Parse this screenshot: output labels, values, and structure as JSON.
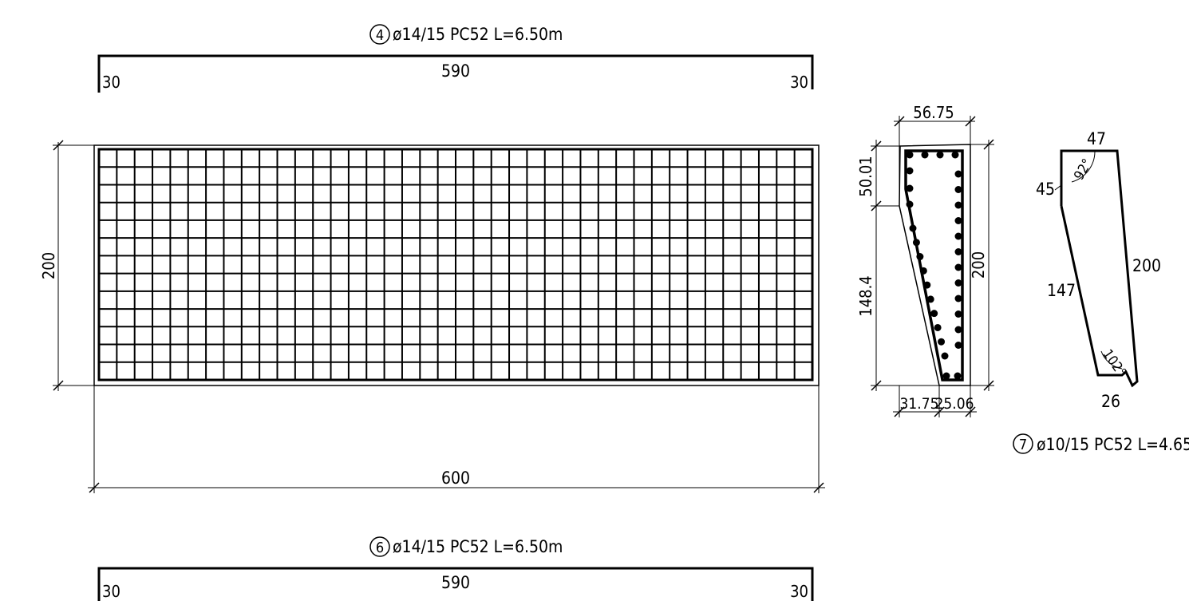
{
  "bar4": {
    "marker": "4",
    "spec": "ø14/15 PC52 L=6.50m",
    "left_hook": "30",
    "length": "590",
    "right_hook": "30"
  },
  "bar6": {
    "marker": "6",
    "spec": "ø14/15 PC52 L=6.50m",
    "left_hook": "30",
    "length": "590",
    "right_hook": "30"
  },
  "plan": {
    "width_dim": "600",
    "height_dim": "200",
    "grid_cols": 40,
    "grid_rows": 13
  },
  "section": {
    "top_width": "56.75",
    "upper_height": "50.01",
    "lower_height": "148.4",
    "total_height": "200",
    "bottom_left": "31.75",
    "bottom_right": "25.06"
  },
  "bar7": {
    "marker": "7",
    "spec": "ø10/15 PC52 L=4.65",
    "top": "47",
    "hook_left": "45",
    "slope": "147",
    "height": "200",
    "bottom": "26",
    "angle_top": "92°",
    "angle_bottom": "102°"
  }
}
